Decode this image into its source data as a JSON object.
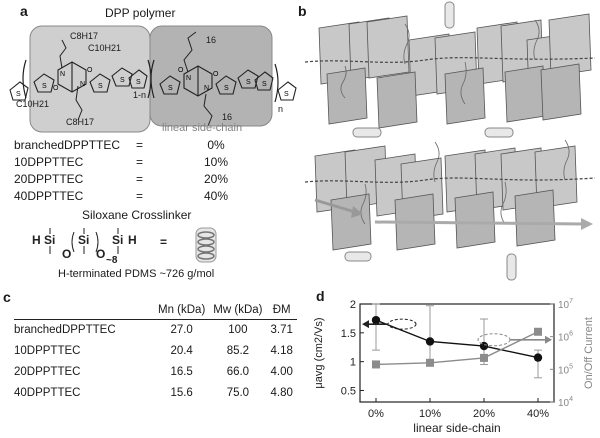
{
  "panels": {
    "a": "a",
    "b": "b",
    "c": "c",
    "d": "d"
  },
  "panel_a": {
    "title": "DPP polymer",
    "substituents": [
      "C8H17",
      "C10H21",
      "C10H21",
      "C8H17"
    ],
    "side_chain_label": "linear side-chain",
    "side_chain_index": "16",
    "repeat_labels": [
      "1-n",
      "n"
    ],
    "ratios": [
      {
        "name": "branchedDPPTTEC",
        "eq": "=",
        "value": "0%"
      },
      {
        "name": "10DPPTTEC",
        "eq": "=",
        "value": "10%"
      },
      {
        "name": "20DPPTTEC",
        "eq": "=",
        "value": "20%"
      },
      {
        "name": "40DPPTTEC",
        "eq": "=",
        "value": "40%"
      }
    ],
    "crosslinker_title": "Siloxane Crosslinker",
    "crosslinker_caption": "H-terminated PDMS ~726 g/mol",
    "crosslinker_repeat": "~8"
  },
  "panel_c": {
    "headers": [
      "",
      "Mn (kDa)",
      "Mw (kDa)",
      "ĐM"
    ],
    "rows": [
      {
        "name": "branchedDPPTTEC",
        "mn": "27.0",
        "mw": "100",
        "d": "3.71"
      },
      {
        "name": "10DPPTTEC",
        "mn": "20.4",
        "mw": "85.2",
        "d": "4.18"
      },
      {
        "name": "20DPPTTEC",
        "mn": "16.5",
        "mw": "66.0",
        "d": "4.00"
      },
      {
        "name": "40DPPTTEC",
        "mn": "15.6",
        "mw": "75.0",
        "d": "4.80"
      }
    ]
  },
  "chart_data": {
    "type": "line",
    "xlabel": "linear side-chain",
    "categories": [
      "0%",
      "10%",
      "20%",
      "40%"
    ],
    "ylabel": "μavg (cm2/Vs)",
    "ylim": [
      0.3,
      2.0
    ],
    "yticks": [
      "0.5",
      "1",
      "1.5",
      "2"
    ],
    "y2label": "On/Off Current",
    "y2lim_log10": [
      4,
      7
    ],
    "y2ticks": [
      "104",
      "105",
      "106",
      "107"
    ],
    "series": [
      {
        "name": "mobility",
        "axis": "left",
        "marker": "circle",
        "color": "#111111",
        "values": [
          1.72,
          1.35,
          1.27,
          1.07
        ],
        "err_low": [
          1.2,
          0.95,
          0.95,
          0.72
        ],
        "err_high": [
          2.0,
          1.97,
          1.74,
          1.2
        ]
      },
      {
        "name": "on/off current",
        "axis": "right",
        "marker": "square",
        "color": "#8c8c8c",
        "values_log10": [
          5.15,
          5.2,
          5.35,
          6.15
        ]
      }
    ]
  }
}
